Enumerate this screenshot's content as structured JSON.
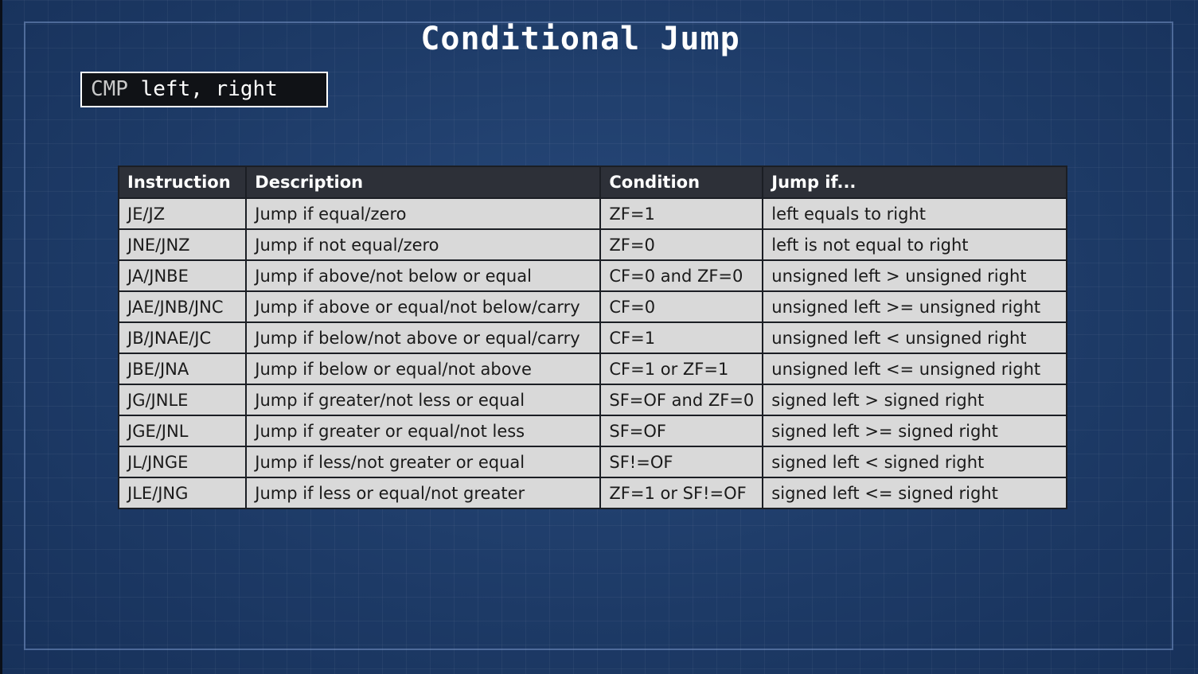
{
  "title": "Conditional Jump",
  "code": {
    "keyword": "CMP",
    "operands": " left, right"
  },
  "table": {
    "headers": [
      "Instruction",
      "Description",
      "Condition",
      "Jump if..."
    ],
    "rows": [
      [
        "JE/JZ",
        "Jump if equal/zero",
        "ZF=1",
        "left equals to right"
      ],
      [
        "JNE/JNZ",
        "Jump if not equal/zero",
        "ZF=0",
        "left is not equal to right"
      ],
      [
        "JA/JNBE",
        "Jump if above/not below or equal",
        "CF=0 and ZF=0",
        "unsigned left > unsigned right"
      ],
      [
        "JAE/JNB/JNC",
        "Jump if above or equal/not below/carry",
        "CF=0",
        "unsigned left >= unsigned right"
      ],
      [
        "JB/JNAE/JC",
        "Jump if below/not above or equal/carry",
        "CF=1",
        "unsigned left < unsigned right"
      ],
      [
        "JBE/JNA",
        "Jump if below or equal/not above",
        "CF=1 or ZF=1",
        "unsigned left <= unsigned right"
      ],
      [
        "JG/JNLE",
        "Jump if greater/not less or equal",
        "SF=OF and ZF=0",
        "signed left > signed right"
      ],
      [
        "JGE/JNL",
        "Jump if greater or equal/not less",
        "SF=OF",
        "signed left >= signed right"
      ],
      [
        "JL/JNGE",
        "Jump if less/not greater or equal",
        "SF!=OF",
        "signed left < signed right"
      ],
      [
        "JLE/JNG",
        "Jump if less or equal/not greater",
        "ZF=1 or SF!=OF",
        "signed left <= signed right"
      ]
    ]
  },
  "colors": {
    "background": "#1f3e6c",
    "header_bg": "#2d3038",
    "cell_bg": "#d9d9d9",
    "code_box_bg": "#101216"
  }
}
